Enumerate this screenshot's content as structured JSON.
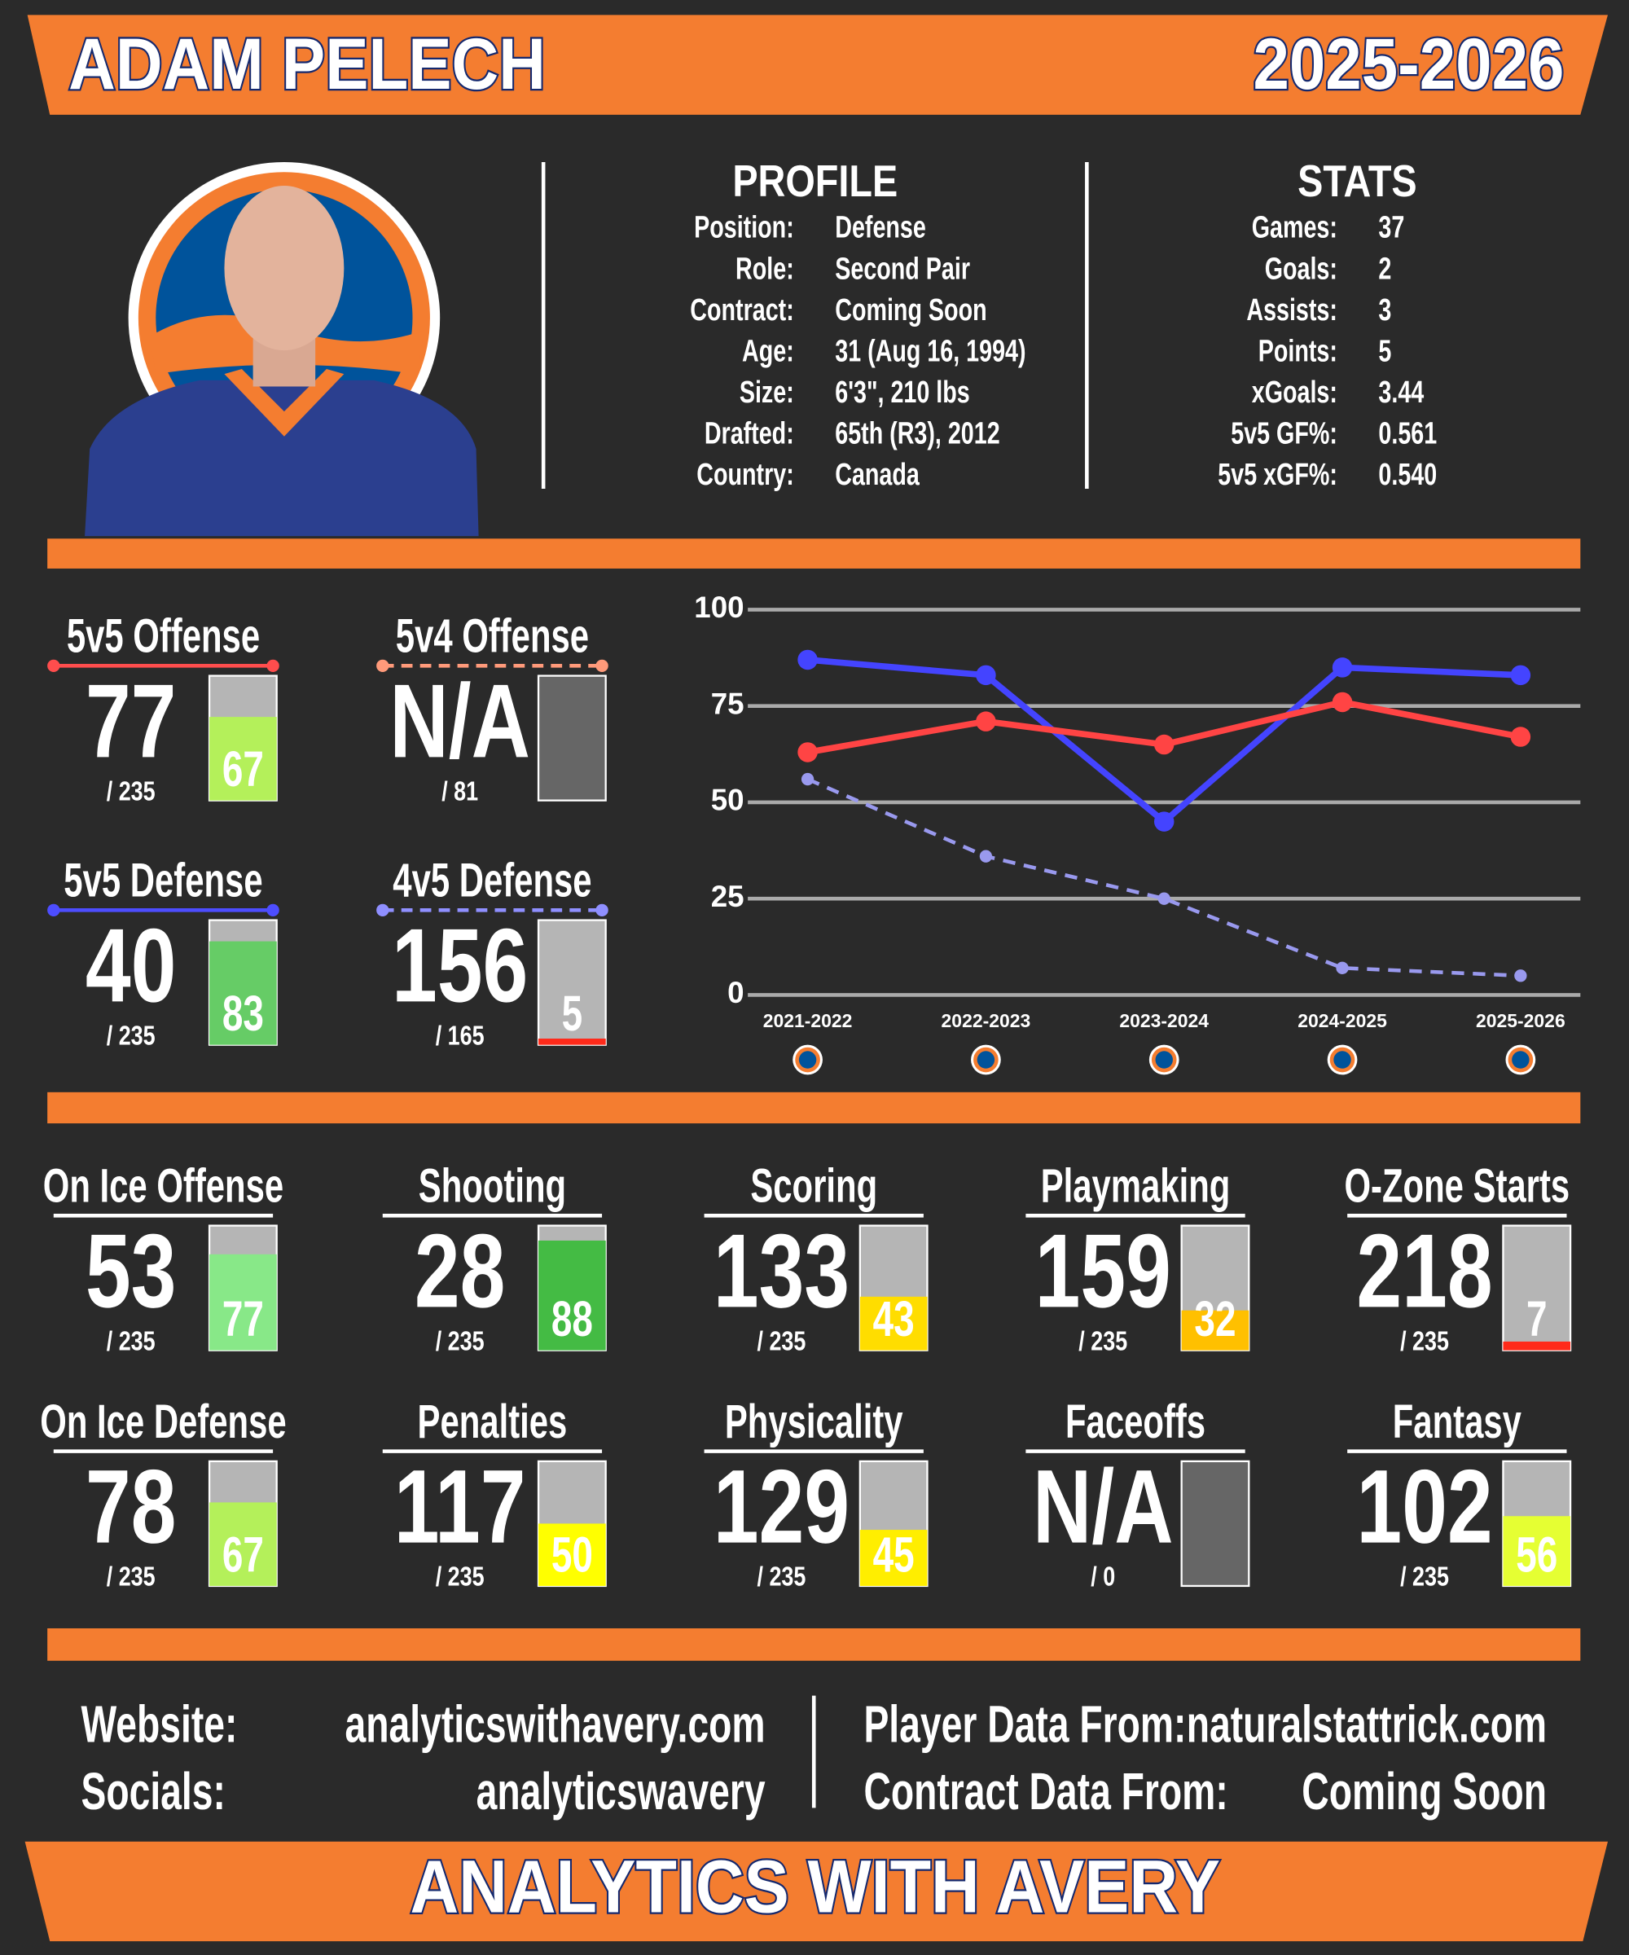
{
  "header": {
    "name": "ADAM PELECH",
    "season": "2025-2026"
  },
  "profile": {
    "title": "PROFILE",
    "rows": [
      {
        "label": "Position:",
        "value": "Defense"
      },
      {
        "label": "Role:",
        "value": "Second Pair"
      },
      {
        "label": "Contract:",
        "value": "Coming Soon"
      },
      {
        "label": "Age:",
        "value": "31 (Aug 16, 1994)"
      },
      {
        "label": "Size:",
        "value": "6'3\", 210 lbs"
      },
      {
        "label": "Drafted:",
        "value": "65th (R3), 2012"
      },
      {
        "label": "Country:",
        "value": "Canada"
      }
    ]
  },
  "stats": {
    "title": "STATS",
    "rows": [
      {
        "label": "Games:",
        "value": "37"
      },
      {
        "label": "Goals:",
        "value": "2"
      },
      {
        "label": "Assists:",
        "value": "3"
      },
      {
        "label": "Points:",
        "value": "5"
      },
      {
        "label": "xGoals:",
        "value": "3.44"
      },
      {
        "label": "5v5 GF%:",
        "value": "0.561"
      },
      {
        "label": "5v5 xGF%:",
        "value": "0.540"
      }
    ]
  },
  "split_ratings": [
    {
      "label": "5v5 Offense",
      "rank": "77",
      "total": "/ 235",
      "percentile": 67,
      "bar_color": "#b4f05a",
      "color": "#ff4d4d",
      "dashed": false
    },
    {
      "label": "5v4 Offense",
      "rank": "N/A",
      "total": "/ 81",
      "percentile": null,
      "bar_color": "#666666",
      "color": "#ff9a7a",
      "dashed": true
    },
    {
      "label": "5v5 Defense",
      "rank": "40",
      "total": "/ 235",
      "percentile": 83,
      "bar_color": "#66cc66",
      "color": "#4d4dff",
      "dashed": false
    },
    {
      "label": "4v5 Defense",
      "rank": "156",
      "total": "/ 165",
      "percentile": 5,
      "bar_color": "#ff2a1a",
      "color": "#8f8fff",
      "dashed": true
    }
  ],
  "ratings": [
    {
      "label": "On Ice Offense",
      "rank": "53",
      "total": "/ 235",
      "percentile": 77,
      "bar_color": "#88e888"
    },
    {
      "label": "Shooting",
      "rank": "28",
      "total": "/ 235",
      "percentile": 88,
      "bar_color": "#44bb44"
    },
    {
      "label": "Scoring",
      "rank": "133",
      "total": "/ 235",
      "percentile": 43,
      "bar_color": "#ffdd00"
    },
    {
      "label": "Playmaking",
      "rank": "159",
      "total": "/ 235",
      "percentile": 32,
      "bar_color": "#ffc000"
    },
    {
      "label": "O-Zone Starts",
      "rank": "218",
      "total": "/ 235",
      "percentile": 7,
      "bar_color": "#ff2a1a"
    },
    {
      "label": "On Ice Defense",
      "rank": "78",
      "total": "/ 235",
      "percentile": 67,
      "bar_color": "#b4f05a"
    },
    {
      "label": "Penalties",
      "rank": "117",
      "total": "/ 235",
      "percentile": 50,
      "bar_color": "#ffff00"
    },
    {
      "label": "Physicality",
      "rank": "129",
      "total": "/ 235",
      "percentile": 45,
      "bar_color": "#ffee00"
    },
    {
      "label": "Faceoffs",
      "rank": "N/A",
      "total": "/ 0",
      "percentile": null,
      "bar_color": "#666666"
    },
    {
      "label": "Fantasy",
      "rank": "102",
      "total": "/ 235",
      "percentile": 56,
      "bar_color": "#e5ff33"
    }
  ],
  "chart_data": {
    "type": "line",
    "categories": [
      "2021-2022",
      "2022-2023",
      "2023-2024",
      "2024-2025",
      "2025-2026"
    ],
    "ylim": [
      0,
      100
    ],
    "yticks": [
      0,
      25,
      50,
      75,
      100
    ],
    "grid": true,
    "series": [
      {
        "color": "#4444ff",
        "dashed": false,
        "values": [
          87,
          83,
          45,
          85,
          83
        ]
      },
      {
        "color": "#ff4444",
        "dashed": false,
        "values": [
          63,
          71,
          65,
          76,
          67
        ]
      },
      {
        "color": "#9999ee",
        "dashed": true,
        "values": [
          56,
          36,
          25,
          7,
          5
        ]
      }
    ]
  },
  "footer": {
    "rows": [
      {
        "label": "Website:",
        "value": "analyticswithavery.com"
      },
      {
        "label": "Socials:",
        "value": "analyticswavery"
      }
    ],
    "sources": [
      {
        "label": "Player Data From:",
        "value": "naturalstattrick.com"
      },
      {
        "label": "Contract Data From:",
        "value": "Coming Soon"
      }
    ],
    "banner": "ANALYTICS WITH AVERY"
  }
}
